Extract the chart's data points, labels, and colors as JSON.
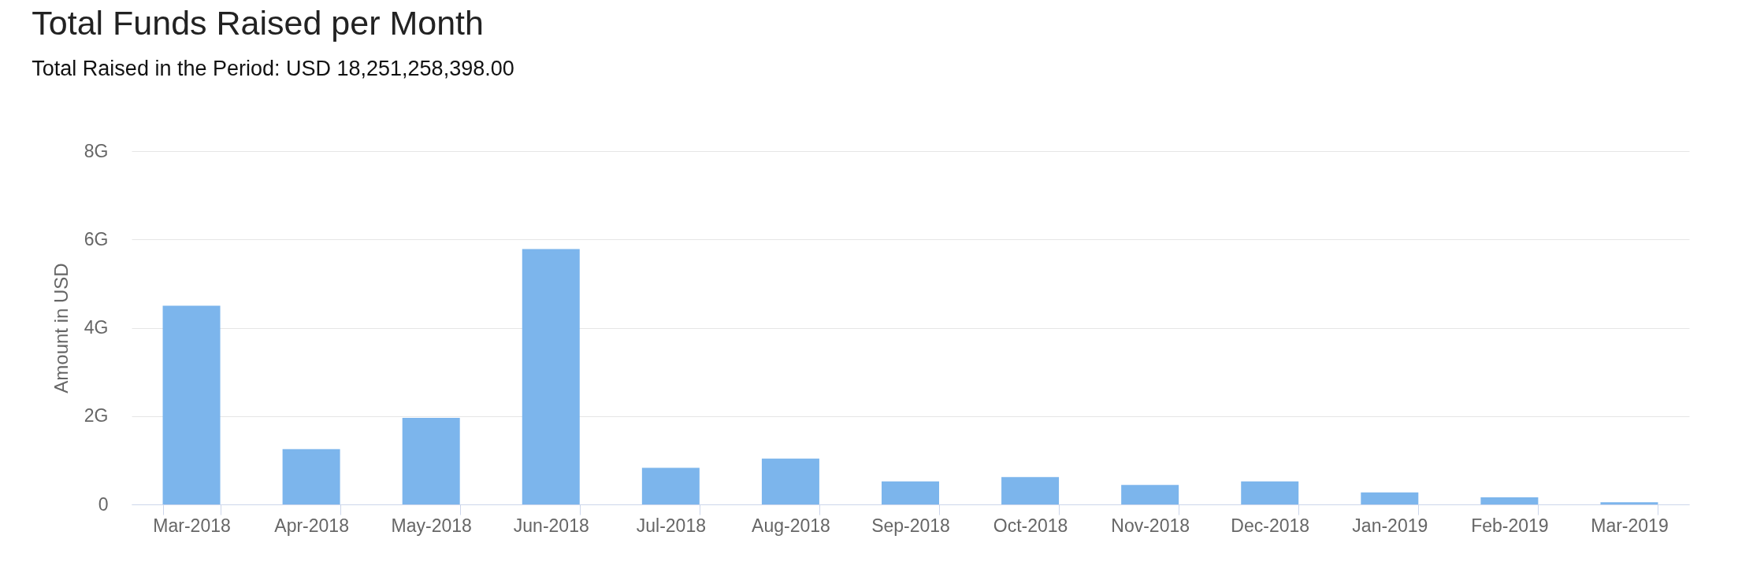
{
  "chart_data": {
    "type": "bar",
    "title": "Total Funds Raised per Month",
    "subtitle": "Total Raised in the Period: USD 18,251,258,398.00",
    "ylabel": "Amount in USD",
    "categories": [
      "Mar-2018",
      "Apr-2018",
      "May-2018",
      "Jun-2018",
      "Jul-2018",
      "Aug-2018",
      "Sep-2018",
      "Oct-2018",
      "Nov-2018",
      "Dec-2018",
      "Jan-2019",
      "Feb-2019",
      "Mar-2019"
    ],
    "values": [
      4.5,
      1.25,
      1.96,
      5.78,
      0.83,
      1.04,
      0.52,
      0.62,
      0.44,
      0.52,
      0.27,
      0.16,
      0.05
    ],
    "color": "#7cb5ec",
    "ylim": [
      0,
      8
    ],
    "yticks": [
      0,
      {
        "value": 2,
        "label": "2G"
      },
      {
        "value": 4,
        "label": "4G"
      },
      {
        "value": 6,
        "label": "6G"
      },
      {
        "value": 8,
        "label": "8G"
      }
    ],
    "grid": "y"
  }
}
